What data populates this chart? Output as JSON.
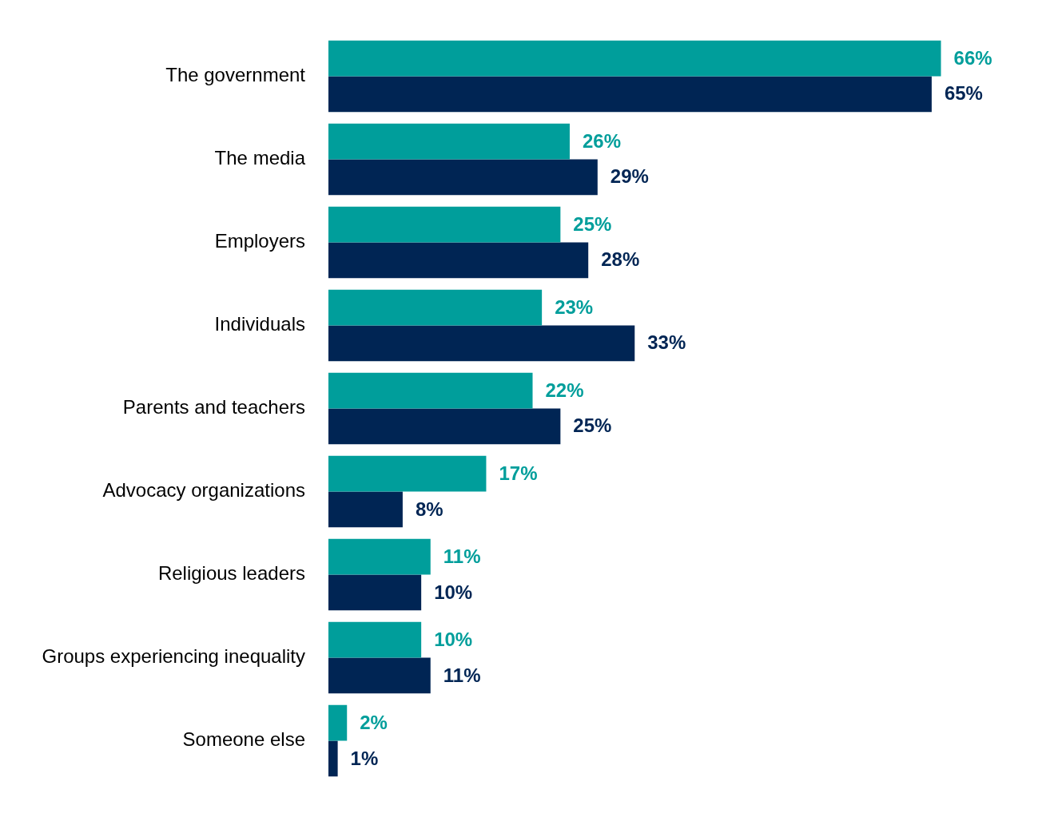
{
  "chart_data": {
    "type": "bar",
    "orientation": "horizontal",
    "categories": [
      "The government",
      "The media",
      "Employers",
      "Individuals",
      "Parents and teachers",
      "Advocacy organizations",
      "Religious leaders",
      "Groups experiencing inequality",
      "Someone else"
    ],
    "series": [
      {
        "color": "#009e9b",
        "values": [
          66,
          26,
          25,
          23,
          22,
          17,
          11,
          10,
          2
        ],
        "value_labels": [
          "66%",
          "26%",
          "25%",
          "23%",
          "22%",
          "17%",
          "11%",
          "10%",
          "2%"
        ]
      },
      {
        "color": "#002554",
        "values": [
          65,
          29,
          28,
          33,
          25,
          8,
          10,
          11,
          1
        ],
        "value_labels": [
          "65%",
          "29%",
          "28%",
          "33%",
          "25%",
          "8%",
          "10%",
          "11%",
          "1%"
        ]
      }
    ],
    "tick_labels": "y",
    "grid": false
  }
}
